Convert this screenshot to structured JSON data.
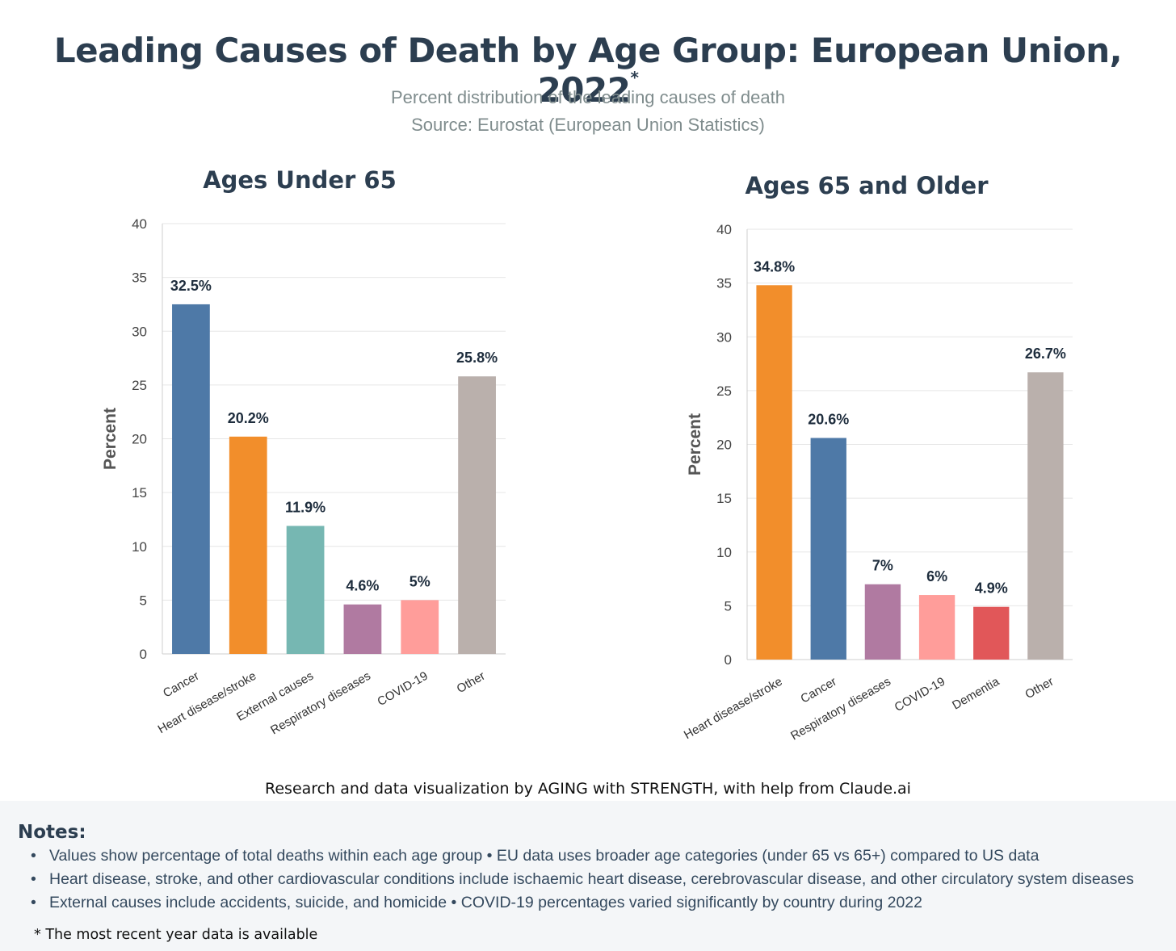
{
  "header": {
    "title": "Leading Causes of Death by Age Group: European Union, 2022",
    "title_mark": "*",
    "subtitle": "Percent distribution of the leading causes of death",
    "source": "Source: Eurostat (European Union Statistics)"
  },
  "chart_data": [
    {
      "type": "bar",
      "title": "Ages Under 65",
      "ylabel": "Percent",
      "xlabel": "",
      "ylim": [
        0,
        40
      ],
      "yticks": [
        0,
        5,
        10,
        15,
        20,
        25,
        30,
        35,
        40
      ],
      "grid": true,
      "categories": [
        "Cancer",
        "Heart disease/stroke",
        "External causes",
        "Respiratory diseases",
        "COVID-19",
        "Other"
      ],
      "values": [
        32.5,
        20.2,
        11.9,
        4.6,
        5,
        25.8
      ],
      "labels": [
        "32.5%",
        "20.2%",
        "11.9%",
        "4.6%",
        "5%",
        "25.8%"
      ],
      "colors": [
        "#4e79a7",
        "#f28e2b",
        "#76b7b2",
        "#b07aa1",
        "#ff9d9a",
        "#bab0ac"
      ]
    },
    {
      "type": "bar",
      "title": "Ages 65 and Older",
      "ylabel": "Percent",
      "xlabel": "",
      "ylim": [
        0,
        40
      ],
      "yticks": [
        0,
        5,
        10,
        15,
        20,
        25,
        30,
        35,
        40
      ],
      "grid": true,
      "categories": [
        "Heart disease/stroke",
        "Cancer",
        "Respiratory diseases",
        "COVID-19",
        "Dementia",
        "Other"
      ],
      "values": [
        34.8,
        20.6,
        7,
        6,
        4.9,
        26.7
      ],
      "labels": [
        "34.8%",
        "20.6%",
        "7%",
        "6%",
        "4.9%",
        "26.7%"
      ],
      "colors": [
        "#f28e2b",
        "#4e79a7",
        "#b07aa1",
        "#ff9d9a",
        "#e15759",
        "#bab0ac"
      ]
    }
  ],
  "credit": "Research and data visualization by AGING with STRENGTH, with help from Claude.ai",
  "notes": {
    "title": "Notes:",
    "items": [
      "Values show percentage of total deaths within each age group • EU data uses broader age categories (under 65 vs 65+) compared to US data",
      "Heart disease, stroke, and other cardiovascular conditions include ischaemic heart disease, cerebrovascular disease, and other circulatory system diseases",
      "External causes include accidents, suicide, and homicide • COVID-19 percentages varied significantly by country during 2022"
    ],
    "footnote": "* The most recent year data is available"
  }
}
